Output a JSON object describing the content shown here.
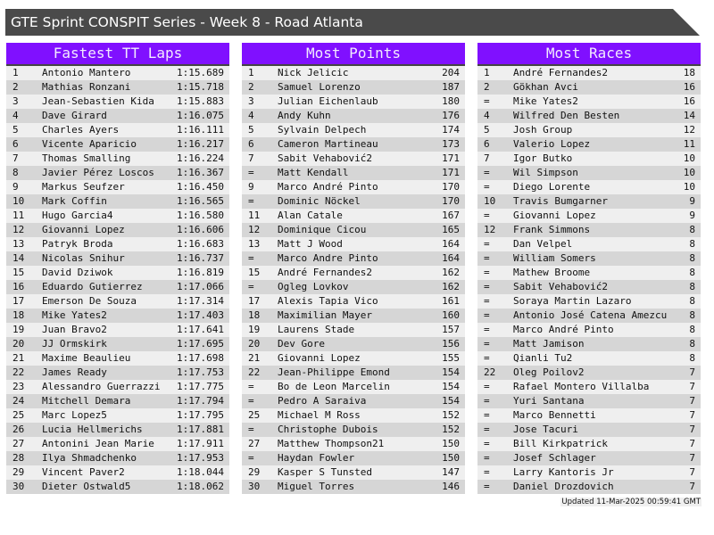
{
  "title": "GTE Sprint CONSPIT Series - Week 8 - Road Atlanta",
  "colors": {
    "header_bg": "#8010ff",
    "title_bg": "#4a4a4a",
    "row_light": "#efefef",
    "row_dark": "#d6d6d6"
  },
  "tables": [
    {
      "title": "Fastest TT Laps",
      "rows": [
        [
          "1",
          "Antonio Mantero",
          "1:15.689"
        ],
        [
          "2",
          "Mathias Ronzani",
          "1:15.718"
        ],
        [
          "3",
          "Jean-Sebastien Kida",
          "1:15.883"
        ],
        [
          "4",
          "Dave Girard",
          "1:16.075"
        ],
        [
          "5",
          "Charles Ayers",
          "1:16.111"
        ],
        [
          "6",
          "Vicente Aparicio",
          "1:16.217"
        ],
        [
          "7",
          "Thomas Smalling",
          "1:16.224"
        ],
        [
          "8",
          "Javier Pérez Loscos",
          "1:16.367"
        ],
        [
          "9",
          "Markus Seufzer",
          "1:16.450"
        ],
        [
          "10",
          "Mark Coffin",
          "1:16.565"
        ],
        [
          "11",
          "Hugo Garcia4",
          "1:16.580"
        ],
        [
          "12",
          "Giovanni Lopez",
          "1:16.606"
        ],
        [
          "13",
          "Patryk Broda",
          "1:16.683"
        ],
        [
          "14",
          "Nicolas Snihur",
          "1:16.737"
        ],
        [
          "15",
          "David Dziwok",
          "1:16.819"
        ],
        [
          "16",
          "Eduardo Gutierrez",
          "1:17.066"
        ],
        [
          "17",
          "Emerson De Souza",
          "1:17.314"
        ],
        [
          "18",
          "Mike Yates2",
          "1:17.403"
        ],
        [
          "19",
          "Juan Bravo2",
          "1:17.641"
        ],
        [
          "20",
          "JJ Ormskirk",
          "1:17.695"
        ],
        [
          "21",
          "Maxime Beaulieu",
          "1:17.698"
        ],
        [
          "22",
          "James Ready",
          "1:17.753"
        ],
        [
          "23",
          "Alessandro Guerrazzi",
          "1:17.775"
        ],
        [
          "24",
          "Mitchell Demara",
          "1:17.794"
        ],
        [
          "25",
          "Marc Lopez5",
          "1:17.795"
        ],
        [
          "26",
          "Lucia Hellmerichs",
          "1:17.881"
        ],
        [
          "27",
          "Antonini Jean Marie",
          "1:17.911"
        ],
        [
          "28",
          "Ilya Shmadchenko",
          "1:17.953"
        ],
        [
          "29",
          "Vincent Paver2",
          "1:18.044"
        ],
        [
          "30",
          "Dieter Ostwald5",
          "1:18.062"
        ]
      ]
    },
    {
      "title": "Most Points",
      "rows": [
        [
          "1",
          "Nick Jelicic",
          "204"
        ],
        [
          "2",
          "Samuel Lorenzo",
          "187"
        ],
        [
          "3",
          "Julian Eichenlaub",
          "180"
        ],
        [
          "4",
          "Andy Kuhn",
          "176"
        ],
        [
          "5",
          "Sylvain Delpech",
          "174"
        ],
        [
          "6",
          "Cameron Martineau",
          "173"
        ],
        [
          "7",
          "Sabit Vehabović2",
          "171"
        ],
        [
          "=",
          "Matt Kendall",
          "171"
        ],
        [
          "9",
          "Marco André Pinto",
          "170"
        ],
        [
          "=",
          "Dominic Nöckel",
          "170"
        ],
        [
          "11",
          "Alan Catale",
          "167"
        ],
        [
          "12",
          "Dominique Cicou",
          "165"
        ],
        [
          "13",
          "Matt J Wood",
          "164"
        ],
        [
          "=",
          "Marco Andre Pinto",
          "164"
        ],
        [
          "15",
          "André Fernandes2",
          "162"
        ],
        [
          "=",
          "Ogleg Lovkov",
          "162"
        ],
        [
          "17",
          "Alexis Tapia Vico",
          "161"
        ],
        [
          "18",
          "Maximilian Mayer",
          "160"
        ],
        [
          "19",
          "Laurens Stade",
          "157"
        ],
        [
          "20",
          "Dev Gore",
          "156"
        ],
        [
          "21",
          "Giovanni Lopez",
          "155"
        ],
        [
          "22",
          "Jean-Philippe Emond",
          "154"
        ],
        [
          "=",
          "Bo de Leon Marcelin",
          "154"
        ],
        [
          "=",
          "Pedro A Saraiva",
          "154"
        ],
        [
          "25",
          "Michael M Ross",
          "152"
        ],
        [
          "=",
          "Christophe Dubois",
          "152"
        ],
        [
          "27",
          "Matthew Thompson21",
          "150"
        ],
        [
          "=",
          "Haydan Fowler",
          "150"
        ],
        [
          "29",
          "Kasper S Tunsted",
          "147"
        ],
        [
          "30",
          "Miguel Torres",
          "146"
        ]
      ]
    },
    {
      "title": "Most Races",
      "rows": [
        [
          "1",
          "André Fernandes2",
          "18"
        ],
        [
          "2",
          "Gökhan Avci",
          "16"
        ],
        [
          "=",
          "Mike Yates2",
          "16"
        ],
        [
          "4",
          "Wilfred Den Besten",
          "14"
        ],
        [
          "5",
          "Josh Group",
          "12"
        ],
        [
          "6",
          "Valerio Lopez",
          "11"
        ],
        [
          "7",
          "Igor Butko",
          "10"
        ],
        [
          "=",
          "Wil Simpson",
          "10"
        ],
        [
          "=",
          "Diego Lorente",
          "10"
        ],
        [
          "10",
          "Travis Bumgarner",
          "9"
        ],
        [
          "=",
          "Giovanni Lopez",
          "9"
        ],
        [
          "12",
          "Frank Simmons",
          "8"
        ],
        [
          "=",
          "Dan Velpel",
          "8"
        ],
        [
          "=",
          "William Somers",
          "8"
        ],
        [
          "=",
          "Mathew Broome",
          "8"
        ],
        [
          "=",
          "Sabit Vehabović2",
          "8"
        ],
        [
          "=",
          "Soraya Martin Lazaro",
          "8"
        ],
        [
          "=",
          "Antonio José Catena Amezcu",
          "8"
        ],
        [
          "=",
          "Marco André Pinto",
          "8"
        ],
        [
          "=",
          "Matt Jamison",
          "8"
        ],
        [
          "=",
          "Qianli Tu2",
          "8"
        ],
        [
          "22",
          "Oleg Poilov2",
          "7"
        ],
        [
          "=",
          "Rafael Montero Villalba",
          "7"
        ],
        [
          "=",
          "Yuri Santana",
          "7"
        ],
        [
          "=",
          "Marco Bennetti",
          "7"
        ],
        [
          "=",
          "Jose Tacuri",
          "7"
        ],
        [
          "=",
          "Bill Kirkpatrick",
          "7"
        ],
        [
          "=",
          "Josef Schlager",
          "7"
        ],
        [
          "=",
          "Larry Kantoris Jr",
          "7"
        ],
        [
          "=",
          "Daniel Drozdovich",
          "7"
        ]
      ]
    }
  ],
  "footer": "Updated 11-Mar-2025 00:59:41 GMT"
}
